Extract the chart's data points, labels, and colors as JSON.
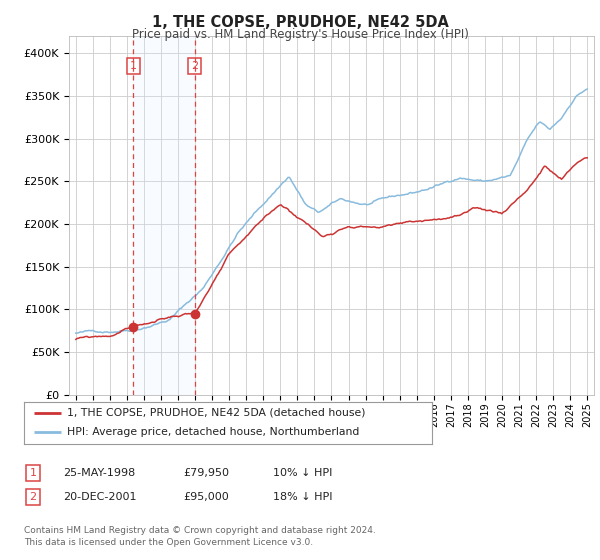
{
  "title": "1, THE COPSE, PRUDHOE, NE42 5DA",
  "subtitle": "Price paid vs. HM Land Registry's House Price Index (HPI)",
  "legend_line1": "1, THE COPSE, PRUDHOE, NE42 5DA (detached house)",
  "legend_line2": "HPI: Average price, detached house, Northumberland",
  "table_rows": [
    {
      "num": "1",
      "date": "25-MAY-1998",
      "price": "£79,950",
      "hpi": "10% ↓ HPI"
    },
    {
      "num": "2",
      "date": "20-DEC-2001",
      "price": "£95,000",
      "hpi": "18% ↓ HPI"
    }
  ],
  "footnote1": "Contains HM Land Registry data © Crown copyright and database right 2024.",
  "footnote2": "This data is licensed under the Open Government Licence v3.0.",
  "purchase1": {
    "date_num": 1998.38,
    "value": 79950
  },
  "purchase2": {
    "date_num": 2001.97,
    "value": 95000
  },
  "vline1": 1998.38,
  "vline2": 2001.97,
  "shade_start": 1998.38,
  "shade_end": 2001.97,
  "red_color": "#cc3333",
  "blue_color": "#88bbdd",
  "shade_color": "#ddeeff",
  "grid_color": "#cccccc",
  "vline_color": "#dd4444",
  "background_color": "#ffffff",
  "ylim": [
    0,
    420000
  ],
  "xlim_start": 1994.6,
  "xlim_end": 2025.4,
  "ytick_labels": [
    "£0",
    "£50K",
    "£100K",
    "£150K",
    "£200K",
    "£250K",
    "£300K",
    "£350K",
    "£400K"
  ],
  "ytick_values": [
    0,
    50000,
    100000,
    150000,
    200000,
    250000,
    300000,
    350000,
    400000
  ],
  "xtick_years": [
    1995,
    1996,
    1997,
    1998,
    1999,
    2000,
    2001,
    2002,
    2003,
    2004,
    2005,
    2006,
    2007,
    2008,
    2009,
    2010,
    2011,
    2012,
    2013,
    2014,
    2015,
    2016,
    2017,
    2018,
    2019,
    2020,
    2021,
    2022,
    2023,
    2024,
    2025
  ],
  "hpi_anchors_x": [
    1995.0,
    1997.0,
    1998.5,
    2000.5,
    2002.5,
    2004.5,
    2007.5,
    2008.5,
    2009.2,
    2010.5,
    2012.0,
    2013.5,
    2015.0,
    2016.5,
    2017.5,
    2019.0,
    2020.5,
    2021.5,
    2022.2,
    2022.8,
    2023.5,
    2024.3,
    2025.0
  ],
  "hpi_anchors_y": [
    72000,
    75000,
    80000,
    93000,
    130000,
    195000,
    262000,
    228000,
    218000,
    232000,
    226000,
    232000,
    238000,
    247000,
    256000,
    252000,
    258000,
    298000,
    318000,
    308000,
    322000,
    348000,
    358000
  ],
  "pp_anchors_x": [
    1995.0,
    1997.0,
    1998.38,
    2001.97,
    2004.0,
    2007.0,
    2008.5,
    2009.5,
    2011.0,
    2013.0,
    2015.0,
    2017.0,
    2018.5,
    2020.0,
    2021.5,
    2022.5,
    2023.5,
    2024.5,
    2025.0
  ],
  "pp_anchors_y": [
    65000,
    68000,
    79950,
    95000,
    160000,
    215000,
    195000,
    178000,
    195000,
    195000,
    200000,
    205000,
    210000,
    205000,
    235000,
    262000,
    245000,
    265000,
    270000
  ]
}
